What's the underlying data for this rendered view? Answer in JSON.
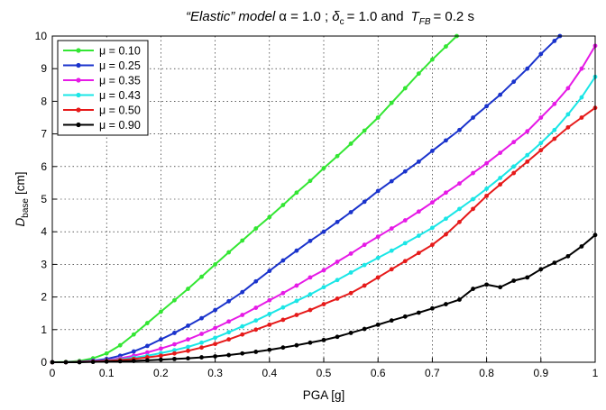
{
  "chart_data": {
    "type": "line",
    "title": "“Elastic” model - α = 1.0 ; δc = 1.0 and  TFB = 0.2 s",
    "title_parts": {
      "model": "“Elastic” model",
      "alpha": "α = 1.0 ;",
      "delta": "δ",
      "delta_sub": "c",
      "delta_val": "= 1.0 and",
      "t": "T",
      "t_sub": "FB",
      "t_val": "= 0.2 s"
    },
    "xlabel": "PGA [g]",
    "ylabel": "D",
    "ylabel_sub": "base",
    "ylabel_unit": "[cm]",
    "xlim": [
      0,
      1
    ],
    "ylim": [
      0,
      10
    ],
    "xticks": [
      "0",
      "0.1",
      "0.2",
      "0.3",
      "0.4",
      "0.5",
      "0.6",
      "0.7",
      "0.8",
      "0.9",
      "1"
    ],
    "yticks": [
      "0",
      "1",
      "2",
      "3",
      "4",
      "5",
      "6",
      "7",
      "8",
      "9",
      "10"
    ],
    "grid": true,
    "legend_position": "top-left",
    "series": [
      {
        "name": "μ = 0.10",
        "color": "#33e633",
        "points": [
          [
            0,
            0
          ],
          [
            0.025,
            0.01
          ],
          [
            0.05,
            0.04
          ],
          [
            0.075,
            0.12
          ],
          [
            0.1,
            0.27
          ],
          [
            0.125,
            0.52
          ],
          [
            0.15,
            0.85
          ],
          [
            0.175,
            1.2
          ],
          [
            0.2,
            1.55
          ],
          [
            0.225,
            1.9
          ],
          [
            0.25,
            2.25
          ],
          [
            0.275,
            2.62
          ],
          [
            0.3,
            3.0
          ],
          [
            0.325,
            3.37
          ],
          [
            0.35,
            3.73
          ],
          [
            0.375,
            4.1
          ],
          [
            0.4,
            4.45
          ],
          [
            0.425,
            4.82
          ],
          [
            0.45,
            5.2
          ],
          [
            0.475,
            5.56
          ],
          [
            0.5,
            5.95
          ],
          [
            0.525,
            6.32
          ],
          [
            0.55,
            6.7
          ],
          [
            0.575,
            7.1
          ],
          [
            0.6,
            7.5
          ],
          [
            0.625,
            7.95
          ],
          [
            0.65,
            8.4
          ],
          [
            0.675,
            8.85
          ],
          [
            0.7,
            9.28
          ],
          [
            0.725,
            9.68
          ],
          [
            0.745,
            10.0
          ]
        ]
      },
      {
        "name": "μ = 0.25",
        "color": "#1a33cc",
        "points": [
          [
            0,
            0
          ],
          [
            0.025,
            0.0
          ],
          [
            0.05,
            0.02
          ],
          [
            0.075,
            0.05
          ],
          [
            0.1,
            0.1
          ],
          [
            0.125,
            0.2
          ],
          [
            0.15,
            0.33
          ],
          [
            0.175,
            0.5
          ],
          [
            0.2,
            0.7
          ],
          [
            0.225,
            0.9
          ],
          [
            0.25,
            1.12
          ],
          [
            0.275,
            1.35
          ],
          [
            0.3,
            1.6
          ],
          [
            0.325,
            1.87
          ],
          [
            0.35,
            2.15
          ],
          [
            0.375,
            2.48
          ],
          [
            0.4,
            2.8
          ],
          [
            0.425,
            3.12
          ],
          [
            0.45,
            3.42
          ],
          [
            0.475,
            3.72
          ],
          [
            0.5,
            4.0
          ],
          [
            0.525,
            4.3
          ],
          [
            0.55,
            4.6
          ],
          [
            0.575,
            4.92
          ],
          [
            0.6,
            5.25
          ],
          [
            0.625,
            5.55
          ],
          [
            0.65,
            5.85
          ],
          [
            0.675,
            6.15
          ],
          [
            0.7,
            6.48
          ],
          [
            0.725,
            6.8
          ],
          [
            0.75,
            7.12
          ],
          [
            0.775,
            7.5
          ],
          [
            0.8,
            7.85
          ],
          [
            0.825,
            8.2
          ],
          [
            0.85,
            8.6
          ],
          [
            0.875,
            9.0
          ],
          [
            0.9,
            9.45
          ],
          [
            0.925,
            9.85
          ],
          [
            0.935,
            10.0
          ]
        ]
      },
      {
        "name": "μ = 0.35",
        "color": "#e61ae6",
        "points": [
          [
            0,
            0
          ],
          [
            0.025,
            0.0
          ],
          [
            0.05,
            0.01
          ],
          [
            0.075,
            0.03
          ],
          [
            0.1,
            0.06
          ],
          [
            0.125,
            0.12
          ],
          [
            0.15,
            0.2
          ],
          [
            0.175,
            0.3
          ],
          [
            0.2,
            0.42
          ],
          [
            0.225,
            0.55
          ],
          [
            0.25,
            0.7
          ],
          [
            0.275,
            0.87
          ],
          [
            0.3,
            1.05
          ],
          [
            0.325,
            1.25
          ],
          [
            0.35,
            1.45
          ],
          [
            0.375,
            1.67
          ],
          [
            0.4,
            1.9
          ],
          [
            0.425,
            2.12
          ],
          [
            0.45,
            2.35
          ],
          [
            0.475,
            2.6
          ],
          [
            0.5,
            2.82
          ],
          [
            0.525,
            3.08
          ],
          [
            0.55,
            3.33
          ],
          [
            0.575,
            3.6
          ],
          [
            0.6,
            3.85
          ],
          [
            0.625,
            4.1
          ],
          [
            0.65,
            4.35
          ],
          [
            0.675,
            4.62
          ],
          [
            0.7,
            4.9
          ],
          [
            0.725,
            5.2
          ],
          [
            0.75,
            5.48
          ],
          [
            0.775,
            5.8
          ],
          [
            0.8,
            6.1
          ],
          [
            0.825,
            6.42
          ],
          [
            0.85,
            6.75
          ],
          [
            0.875,
            7.08
          ],
          [
            0.9,
            7.5
          ],
          [
            0.925,
            7.92
          ],
          [
            0.95,
            8.4
          ],
          [
            0.975,
            9.0
          ],
          [
            1.0,
            9.7
          ]
        ]
      },
      {
        "name": "μ = 0.43",
        "color": "#1ae6e6",
        "points": [
          [
            0,
            0
          ],
          [
            0.025,
            0.0
          ],
          [
            0.05,
            0.01
          ],
          [
            0.075,
            0.02
          ],
          [
            0.1,
            0.05
          ],
          [
            0.125,
            0.09
          ],
          [
            0.15,
            0.14
          ],
          [
            0.175,
            0.2
          ],
          [
            0.2,
            0.28
          ],
          [
            0.225,
            0.37
          ],
          [
            0.25,
            0.47
          ],
          [
            0.275,
            0.6
          ],
          [
            0.3,
            0.75
          ],
          [
            0.325,
            0.92
          ],
          [
            0.35,
            1.1
          ],
          [
            0.375,
            1.28
          ],
          [
            0.4,
            1.48
          ],
          [
            0.425,
            1.68
          ],
          [
            0.45,
            1.88
          ],
          [
            0.475,
            2.08
          ],
          [
            0.5,
            2.3
          ],
          [
            0.525,
            2.52
          ],
          [
            0.55,
            2.75
          ],
          [
            0.575,
            2.98
          ],
          [
            0.6,
            3.2
          ],
          [
            0.625,
            3.42
          ],
          [
            0.65,
            3.65
          ],
          [
            0.675,
            3.88
          ],
          [
            0.7,
            4.12
          ],
          [
            0.725,
            4.4
          ],
          [
            0.75,
            4.7
          ],
          [
            0.775,
            5.0
          ],
          [
            0.8,
            5.32
          ],
          [
            0.825,
            5.65
          ],
          [
            0.85,
            6.0
          ],
          [
            0.875,
            6.35
          ],
          [
            0.9,
            6.72
          ],
          [
            0.925,
            7.12
          ],
          [
            0.95,
            7.6
          ],
          [
            0.975,
            8.12
          ],
          [
            1.0,
            8.75
          ]
        ]
      },
      {
        "name": "μ = 0.50",
        "color": "#e61a1a",
        "points": [
          [
            0,
            0
          ],
          [
            0.025,
            0.0
          ],
          [
            0.05,
            0.01
          ],
          [
            0.075,
            0.02
          ],
          [
            0.1,
            0.04
          ],
          [
            0.125,
            0.07
          ],
          [
            0.15,
            0.1
          ],
          [
            0.175,
            0.15
          ],
          [
            0.2,
            0.2
          ],
          [
            0.225,
            0.27
          ],
          [
            0.25,
            0.35
          ],
          [
            0.275,
            0.45
          ],
          [
            0.3,
            0.56
          ],
          [
            0.325,
            0.7
          ],
          [
            0.35,
            0.85
          ],
          [
            0.375,
            1.0
          ],
          [
            0.4,
            1.15
          ],
          [
            0.425,
            1.3
          ],
          [
            0.45,
            1.45
          ],
          [
            0.475,
            1.6
          ],
          [
            0.5,
            1.78
          ],
          [
            0.525,
            1.95
          ],
          [
            0.55,
            2.12
          ],
          [
            0.575,
            2.35
          ],
          [
            0.6,
            2.6
          ],
          [
            0.625,
            2.85
          ],
          [
            0.65,
            3.1
          ],
          [
            0.675,
            3.35
          ],
          [
            0.7,
            3.6
          ],
          [
            0.725,
            3.92
          ],
          [
            0.75,
            4.3
          ],
          [
            0.775,
            4.7
          ],
          [
            0.8,
            5.1
          ],
          [
            0.825,
            5.45
          ],
          [
            0.85,
            5.8
          ],
          [
            0.875,
            6.15
          ],
          [
            0.9,
            6.5
          ],
          [
            0.925,
            6.85
          ],
          [
            0.95,
            7.2
          ],
          [
            0.975,
            7.5
          ],
          [
            1.0,
            7.8
          ]
        ]
      },
      {
        "name": "μ = 0.90",
        "color": "#000000",
        "points": [
          [
            0,
            0
          ],
          [
            0.025,
            0.0
          ],
          [
            0.05,
            0.0
          ],
          [
            0.075,
            0.01
          ],
          [
            0.1,
            0.02
          ],
          [
            0.125,
            0.03
          ],
          [
            0.15,
            0.04
          ],
          [
            0.175,
            0.06
          ],
          [
            0.2,
            0.08
          ],
          [
            0.225,
            0.1
          ],
          [
            0.25,
            0.12
          ],
          [
            0.275,
            0.15
          ],
          [
            0.3,
            0.18
          ],
          [
            0.325,
            0.22
          ],
          [
            0.35,
            0.27
          ],
          [
            0.375,
            0.32
          ],
          [
            0.4,
            0.38
          ],
          [
            0.425,
            0.45
          ],
          [
            0.45,
            0.52
          ],
          [
            0.475,
            0.6
          ],
          [
            0.5,
            0.68
          ],
          [
            0.525,
            0.78
          ],
          [
            0.55,
            0.9
          ],
          [
            0.575,
            1.02
          ],
          [
            0.6,
            1.15
          ],
          [
            0.625,
            1.28
          ],
          [
            0.65,
            1.4
          ],
          [
            0.675,
            1.52
          ],
          [
            0.7,
            1.65
          ],
          [
            0.725,
            1.78
          ],
          [
            0.75,
            1.92
          ],
          [
            0.775,
            2.25
          ],
          [
            0.8,
            2.38
          ],
          [
            0.825,
            2.3
          ],
          [
            0.85,
            2.5
          ],
          [
            0.875,
            2.6
          ],
          [
            0.9,
            2.85
          ],
          [
            0.925,
            3.05
          ],
          [
            0.95,
            3.25
          ],
          [
            0.975,
            3.55
          ],
          [
            1.0,
            3.9
          ]
        ]
      }
    ]
  }
}
